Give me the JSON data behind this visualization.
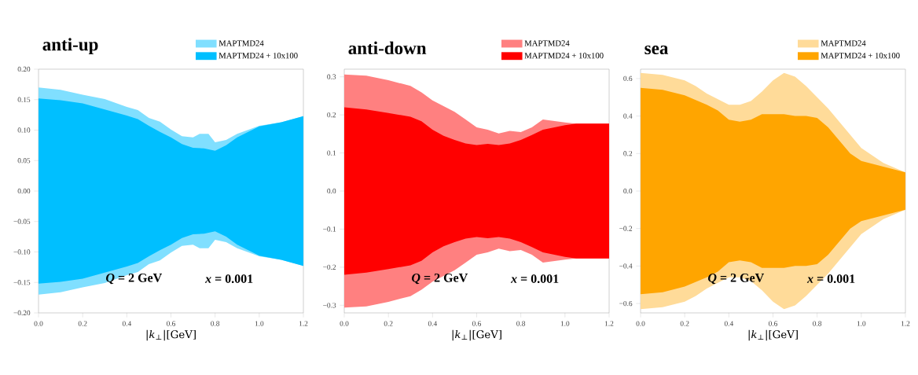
{
  "chart_data": [
    {
      "type": "area",
      "title": "anti-up",
      "xlabel": "|*k*$_{⊥}$|[GeV]",
      "annotations": [
        "*Q* = 2 GeV",
        "*x* = 0.001"
      ],
      "legend": "top",
      "xlim": [
        0,
        1.2
      ],
      "ylim": [
        -0.2,
        0.2
      ],
      "xticks": [
        {
          "value": 0,
          "label": "0.0"
        },
        {
          "value": 0.2,
          "label": "0.2"
        },
        {
          "value": 0.4,
          "label": "0.4"
        },
        {
          "value": 0.6,
          "label": "0.6"
        },
        {
          "value": 0.8,
          "label": "0.8"
        },
        {
          "value": 1.0,
          "label": "1.0"
        },
        {
          "value": 1.2,
          "label": "1.2"
        }
      ],
      "yticks": [
        {
          "value": -0.2,
          "label": "−0.20"
        },
        {
          "value": -0.15,
          "label": "−0.15"
        },
        {
          "value": -0.1,
          "label": "−0.10"
        },
        {
          "value": -0.05,
          "label": "−0.05"
        },
        {
          "value": 0,
          "label": "0.00"
        },
        {
          "value": 0.05,
          "label": "0.05"
        },
        {
          "value": 0.1,
          "label": "0.10"
        },
        {
          "value": 0.15,
          "label": "0.15"
        },
        {
          "value": 0.2,
          "label": "0.20"
        }
      ],
      "series": [
        {
          "name": "MAPTMD24",
          "color": "#80dfff",
          "x": [
            0,
            0.1,
            0.2,
            0.3,
            0.4,
            0.45,
            0.5,
            0.55,
            0.6,
            0.65,
            0.7,
            0.73,
            0.77,
            0.8,
            0.85,
            0.9,
            1.0,
            1.1,
            1.2
          ],
          "values": [
            0.17,
            0.166,
            0.158,
            0.151,
            0.138,
            0.133,
            0.12,
            0.114,
            0.101,
            0.09,
            0.088,
            0.094,
            0.094,
            0.08,
            0.084,
            0.094,
            0.107,
            0.113,
            0.123
          ]
        },
        {
          "color": "#80dfff",
          "x": [
            0,
            0.1,
            0.2,
            0.3,
            0.4,
            0.45,
            0.5,
            0.55,
            0.6,
            0.65,
            0.7,
            0.73,
            0.77,
            0.8,
            0.85,
            0.9,
            1.0,
            1.1,
            1.2
          ],
          "values": [
            -0.17,
            -0.166,
            -0.158,
            -0.151,
            -0.138,
            -0.133,
            -0.12,
            -0.114,
            -0.101,
            -0.09,
            -0.088,
            -0.094,
            -0.094,
            -0.08,
            -0.084,
            -0.094,
            -0.107,
            -0.113,
            -0.123
          ]
        },
        {
          "name": "MAPTMD24 + 10x100",
          "color": "#00bfff",
          "x": [
            0,
            0.1,
            0.2,
            0.3,
            0.4,
            0.45,
            0.5,
            0.55,
            0.6,
            0.65,
            0.7,
            0.75,
            0.8,
            0.85,
            0.9,
            1.0,
            1.1,
            1.2
          ],
          "values": [
            0.152,
            0.149,
            0.144,
            0.134,
            0.124,
            0.118,
            0.107,
            0.097,
            0.088,
            0.077,
            0.071,
            0.07,
            0.066,
            0.075,
            0.088,
            0.106,
            0.113,
            0.123
          ]
        },
        {
          "color": "#00bfff",
          "x": [
            0,
            0.1,
            0.2,
            0.3,
            0.4,
            0.45,
            0.5,
            0.55,
            0.6,
            0.65,
            0.7,
            0.75,
            0.8,
            0.85,
            0.9,
            1.0,
            1.1,
            1.2
          ],
          "values": [
            -0.152,
            -0.149,
            -0.144,
            -0.134,
            -0.124,
            -0.118,
            -0.107,
            -0.097,
            -0.088,
            -0.077,
            -0.071,
            -0.07,
            -0.066,
            -0.075,
            -0.088,
            -0.106,
            -0.113,
            -0.123
          ]
        }
      ]
    },
    {
      "type": "area",
      "title": "anti-down",
      "xlabel": "|*k*$_{⊥}$|[GeV]",
      "annotations": [
        "*Q* = 2 GeV",
        "*x* = 0.001"
      ],
      "legend": "top",
      "xlim": [
        0,
        1.2
      ],
      "ylim": [
        -0.32,
        0.32
      ],
      "xticks": [
        {
          "value": 0,
          "label": "0.0"
        },
        {
          "value": 0.2,
          "label": "0.2"
        },
        {
          "value": 0.4,
          "label": "0.4"
        },
        {
          "value": 0.6,
          "label": "0.6"
        },
        {
          "value": 0.8,
          "label": "0.8"
        },
        {
          "value": 1.0,
          "label": "1.0"
        },
        {
          "value": 1.2,
          "label": "1.2"
        }
      ],
      "yticks": [
        {
          "value": -0.3,
          "label": "−0.3"
        },
        {
          "value": -0.2,
          "label": "−0.2"
        },
        {
          "value": -0.1,
          "label": "−0.1"
        },
        {
          "value": 0,
          "label": "0.0"
        },
        {
          "value": 0.1,
          "label": "0.1"
        },
        {
          "value": 0.2,
          "label": "0.2"
        },
        {
          "value": 0.3,
          "label": "0.3"
        }
      ],
      "series": [
        {
          "name": "MAPTMD24",
          "color": "#ff8080",
          "x": [
            0,
            0.1,
            0.2,
            0.3,
            0.35,
            0.4,
            0.45,
            0.5,
            0.55,
            0.6,
            0.65,
            0.7,
            0.75,
            0.8,
            0.85,
            0.9,
            1.0,
            1.05,
            1.1,
            1.2
          ],
          "values": [
            0.306,
            0.303,
            0.291,
            0.276,
            0.259,
            0.238,
            0.223,
            0.208,
            0.188,
            0.167,
            0.161,
            0.151,
            0.158,
            0.155,
            0.167,
            0.188,
            0.18,
            0.177,
            0.177,
            0.177
          ]
        },
        {
          "color": "#ff8080",
          "x": [
            0,
            0.1,
            0.2,
            0.3,
            0.35,
            0.4,
            0.45,
            0.5,
            0.55,
            0.6,
            0.65,
            0.7,
            0.75,
            0.8,
            0.85,
            0.9,
            1.0,
            1.05,
            1.1,
            1.2
          ],
          "values": [
            -0.306,
            -0.303,
            -0.291,
            -0.276,
            -0.259,
            -0.238,
            -0.223,
            -0.208,
            -0.188,
            -0.167,
            -0.161,
            -0.151,
            -0.158,
            -0.155,
            -0.167,
            -0.188,
            -0.18,
            -0.177,
            -0.177,
            -0.177
          ]
        },
        {
          "name": "MAPTMD24 + 10x100",
          "color": "#ff0000",
          "x": [
            0,
            0.1,
            0.2,
            0.3,
            0.35,
            0.4,
            0.45,
            0.5,
            0.55,
            0.6,
            0.65,
            0.7,
            0.75,
            0.8,
            0.85,
            0.9,
            1.0,
            1.05,
            1.1,
            1.2
          ],
          "values": [
            0.22,
            0.214,
            0.205,
            0.195,
            0.183,
            0.161,
            0.145,
            0.134,
            0.125,
            0.121,
            0.124,
            0.121,
            0.125,
            0.134,
            0.147,
            0.161,
            0.173,
            0.177,
            0.177,
            0.177
          ]
        },
        {
          "color": "#ff0000",
          "x": [
            0,
            0.1,
            0.2,
            0.3,
            0.35,
            0.4,
            0.45,
            0.5,
            0.55,
            0.6,
            0.65,
            0.7,
            0.75,
            0.8,
            0.85,
            0.9,
            1.0,
            1.05,
            1.1,
            1.2
          ],
          "values": [
            -0.22,
            -0.214,
            -0.205,
            -0.195,
            -0.183,
            -0.161,
            -0.145,
            -0.134,
            -0.125,
            -0.121,
            -0.124,
            -0.121,
            -0.125,
            -0.134,
            -0.147,
            -0.161,
            -0.173,
            -0.177,
            -0.177,
            -0.177
          ]
        }
      ]
    },
    {
      "type": "area",
      "title": "sea",
      "xlabel": "|*k*$_{⊥}$|[GeV]",
      "annotations": [
        "*Q* = 2 GeV",
        "*x* = 0.001"
      ],
      "legend": "top",
      "xlim": [
        0,
        1.2
      ],
      "ylim": [
        -0.65,
        0.65
      ],
      "xticks": [
        {
          "value": 0,
          "label": "0.0"
        },
        {
          "value": 0.2,
          "label": "0.2"
        },
        {
          "value": 0.4,
          "label": "0.4"
        },
        {
          "value": 0.6,
          "label": "0.6"
        },
        {
          "value": 0.8,
          "label": "0.8"
        },
        {
          "value": 1.0,
          "label": "1.0"
        },
        {
          "value": 1.2,
          "label": "1.2"
        }
      ],
      "yticks": [
        {
          "value": -0.6,
          "label": "−0.6"
        },
        {
          "value": -0.4,
          "label": "−0.4"
        },
        {
          "value": -0.2,
          "label": "−0.2"
        },
        {
          "value": 0,
          "label": "0.0"
        },
        {
          "value": 0.2,
          "label": "0.2"
        },
        {
          "value": 0.4,
          "label": "0.4"
        },
        {
          "value": 0.6,
          "label": "0.6"
        }
      ],
      "series": [
        {
          "name": "MAPTMD24",
          "color": "#ffdb99",
          "x": [
            0,
            0.1,
            0.2,
            0.25,
            0.3,
            0.35,
            0.4,
            0.45,
            0.5,
            0.55,
            0.6,
            0.65,
            0.7,
            0.75,
            0.8,
            0.85,
            0.9,
            0.95,
            1.0,
            1.1,
            1.2
          ],
          "values": [
            0.63,
            0.62,
            0.59,
            0.56,
            0.52,
            0.49,
            0.46,
            0.46,
            0.48,
            0.53,
            0.59,
            0.63,
            0.61,
            0.56,
            0.5,
            0.44,
            0.37,
            0.3,
            0.23,
            0.15,
            0.1
          ]
        },
        {
          "color": "#ffdb99",
          "x": [
            0,
            0.1,
            0.2,
            0.25,
            0.3,
            0.35,
            0.4,
            0.45,
            0.5,
            0.55,
            0.6,
            0.65,
            0.7,
            0.75,
            0.8,
            0.85,
            0.9,
            0.95,
            1.0,
            1.1,
            1.2
          ],
          "values": [
            -0.63,
            -0.62,
            -0.59,
            -0.56,
            -0.52,
            -0.49,
            -0.46,
            -0.46,
            -0.48,
            -0.53,
            -0.59,
            -0.63,
            -0.61,
            -0.56,
            -0.5,
            -0.44,
            -0.37,
            -0.3,
            -0.23,
            -0.15,
            -0.1
          ]
        },
        {
          "name": "MAPTMD24 + 10x100",
          "color": "#ffa500",
          "x": [
            0,
            0.1,
            0.2,
            0.3,
            0.35,
            0.4,
            0.45,
            0.5,
            0.55,
            0.6,
            0.65,
            0.7,
            0.75,
            0.8,
            0.85,
            0.9,
            0.95,
            1.0,
            1.1,
            1.2
          ],
          "values": [
            0.55,
            0.54,
            0.51,
            0.46,
            0.43,
            0.38,
            0.37,
            0.38,
            0.41,
            0.41,
            0.41,
            0.4,
            0.4,
            0.39,
            0.34,
            0.27,
            0.2,
            0.16,
            0.13,
            0.1
          ]
        },
        {
          "color": "#ffa500",
          "x": [
            0,
            0.1,
            0.2,
            0.3,
            0.35,
            0.4,
            0.45,
            0.5,
            0.55,
            0.6,
            0.65,
            0.7,
            0.75,
            0.8,
            0.85,
            0.9,
            0.95,
            1.0,
            1.1,
            1.2
          ],
          "values": [
            -0.55,
            -0.54,
            -0.51,
            -0.46,
            -0.43,
            -0.38,
            -0.37,
            -0.38,
            -0.41,
            -0.41,
            -0.41,
            -0.4,
            -0.4,
            -0.39,
            -0.34,
            -0.27,
            -0.2,
            -0.16,
            -0.13,
            -0.1
          ]
        }
      ]
    }
  ]
}
